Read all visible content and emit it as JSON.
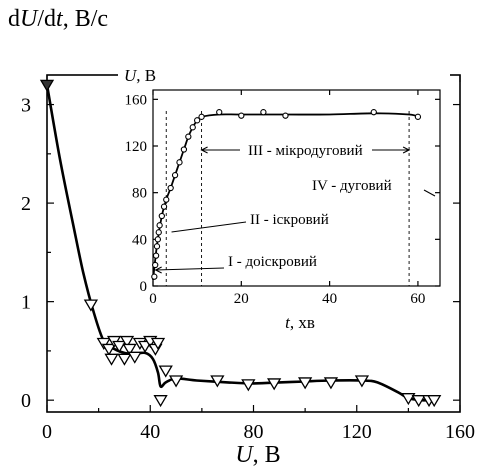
{
  "chart_data": [
    {
      "type": "line",
      "ylabel_parts": {
        "pre": "d",
        "v1": "U",
        "mid": "/d",
        "v2": "t",
        "post": ", В/с"
      },
      "xlabel_parts": {
        "var": "U",
        "post": ", В"
      },
      "xlim": [
        0,
        160
      ],
      "ylim": [
        -0.12,
        3.3
      ],
      "xticks": [
        0,
        40,
        80,
        120,
        160
      ],
      "yticks": [
        0,
        1,
        2,
        3
      ],
      "xtick_labels": [
        "0",
        "40",
        "80",
        "120",
        "160"
      ],
      "ytick_labels": [
        "0",
        "1",
        "2",
        "3"
      ],
      "markers": [
        [
          0,
          3.2
        ],
        [
          17,
          0.97
        ],
        [
          22,
          0.58
        ],
        [
          24,
          0.52
        ],
        [
          25,
          0.42
        ],
        [
          26,
          0.6
        ],
        [
          28,
          0.55
        ],
        [
          30,
          0.42
        ],
        [
          31,
          0.6
        ],
        [
          32,
          0.52
        ],
        [
          34,
          0.44
        ],
        [
          36,
          0.58
        ],
        [
          38,
          0.55
        ],
        [
          40,
          0.6
        ],
        [
          42,
          0.52
        ],
        [
          43,
          0.58
        ],
        [
          44,
          0.0
        ],
        [
          46,
          0.3
        ],
        [
          50,
          0.2
        ],
        [
          66,
          0.2
        ],
        [
          78,
          0.16
        ],
        [
          88,
          0.17
        ],
        [
          100,
          0.18
        ],
        [
          110,
          0.18
        ],
        [
          122,
          0.2
        ],
        [
          140,
          0.02
        ],
        [
          144,
          0.0
        ],
        [
          148,
          0.0
        ],
        [
          150,
          0.0
        ]
      ],
      "curve": [
        [
          0,
          3.2
        ],
        [
          5,
          2.45
        ],
        [
          10,
          1.8
        ],
        [
          14,
          1.3
        ],
        [
          18,
          0.9
        ],
        [
          22,
          0.6
        ],
        [
          26,
          0.52
        ],
        [
          30,
          0.48
        ],
        [
          34,
          0.47
        ],
        [
          38,
          0.48
        ],
        [
          41,
          0.42
        ],
        [
          43,
          0.28
        ],
        [
          44,
          0.14
        ],
        [
          46,
          0.18
        ],
        [
          50,
          0.22
        ],
        [
          58,
          0.2
        ],
        [
          70,
          0.18
        ],
        [
          80,
          0.17
        ],
        [
          90,
          0.18
        ],
        [
          100,
          0.19
        ],
        [
          110,
          0.2
        ],
        [
          122,
          0.2
        ],
        [
          128,
          0.18
        ],
        [
          136,
          0.08
        ],
        [
          140,
          0.02
        ],
        [
          145,
          0.0
        ],
        [
          150,
          0.0
        ]
      ]
    },
    {
      "type": "line",
      "ylabel_parts": {
        "var": "U",
        "post": ", В"
      },
      "xlabel_parts": {
        "var": "t",
        "post": ", хв"
      },
      "xlim": [
        0,
        65
      ],
      "ylim": [
        0,
        168
      ],
      "xticks": [
        0,
        20,
        40,
        60
      ],
      "yticks": [
        0,
        40,
        80,
        120,
        160
      ],
      "xtick_labels": [
        "0",
        "20",
        "40",
        "60"
      ],
      "ytick_labels": [
        "0",
        "40",
        "80",
        "120",
        "160"
      ],
      "points": [
        [
          0.3,
          8
        ],
        [
          0.5,
          18
        ],
        [
          0.7,
          26
        ],
        [
          0.9,
          34
        ],
        [
          1.1,
          40
        ],
        [
          1.3,
          46
        ],
        [
          1.5,
          52
        ],
        [
          2.0,
          60
        ],
        [
          2.5,
          68
        ],
        [
          3,
          74
        ],
        [
          4,
          84
        ],
        [
          5,
          95
        ],
        [
          6,
          106
        ],
        [
          7,
          117
        ],
        [
          8,
          128
        ],
        [
          9,
          136
        ],
        [
          10,
          142
        ],
        [
          11,
          145
        ],
        [
          15,
          149
        ],
        [
          20,
          146
        ],
        [
          25,
          149
        ],
        [
          30,
          146
        ],
        [
          50,
          149
        ],
        [
          60,
          145
        ]
      ],
      "curve": [
        [
          0,
          5
        ],
        [
          1,
          38
        ],
        [
          2,
          60
        ],
        [
          3,
          74
        ],
        [
          4,
          84
        ],
        [
          5,
          95
        ],
        [
          6,
          106
        ],
        [
          7,
          117
        ],
        [
          8,
          128
        ],
        [
          9,
          136
        ],
        [
          10,
          142
        ],
        [
          11,
          145
        ],
        [
          15,
          147
        ],
        [
          20,
          147
        ],
        [
          30,
          147
        ],
        [
          40,
          147
        ],
        [
          50,
          148
        ],
        [
          58,
          147
        ],
        [
          60,
          145
        ]
      ],
      "stage_bounds": [
        3,
        11,
        58
      ],
      "annotations": [
        {
          "text": "I - доіскровий"
        },
        {
          "text": "II - іскровий"
        },
        {
          "text": "III - мікродуговий"
        },
        {
          "text": "IV - дуговий"
        }
      ]
    }
  ]
}
